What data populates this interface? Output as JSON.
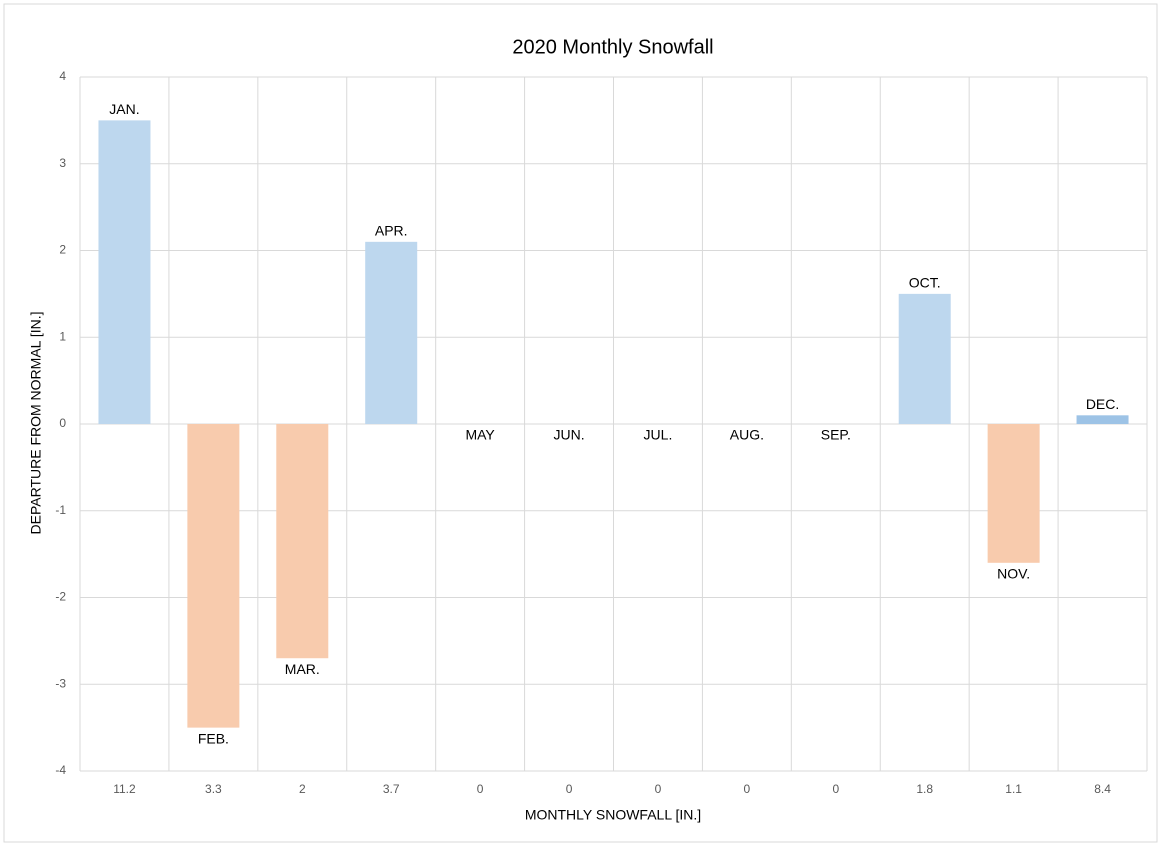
{
  "chart_data": {
    "type": "bar",
    "title": "2020 Monthly  Snowfall",
    "x_label": "MONTHLY SNOWFALL [IN.]",
    "y_label": "DEPARTURE FROM NORMAL [IN.]",
    "categories": [
      "11.2",
      "3.3",
      "2",
      "3.7",
      "0",
      "0",
      "0",
      "0",
      "0",
      "1.8",
      "1.1",
      "8.4"
    ],
    "labels": [
      "JAN.",
      "FEB.",
      "MAR.",
      "APR.",
      "MAY",
      "JUN.",
      "JUL.",
      "AUG.",
      "SEP.",
      "OCT.",
      "NOV.",
      "DEC."
    ],
    "values": [
      3.5,
      -3.5,
      -2.7,
      2.1,
      0,
      0,
      0,
      0,
      0,
      1.5,
      -1.6,
      0.1
    ],
    "colors": [
      "#bdd7ee",
      "#f8cbad",
      "#f8cbad",
      "#bdd7ee",
      "#bdd7ee",
      "#bdd7ee",
      "#bdd7ee",
      "#bdd7ee",
      "#bdd7ee",
      "#bdd7ee",
      "#f8cbad",
      "#9dc3e6"
    ],
    "ylim": [
      -4,
      4
    ],
    "yticks": [
      -4,
      -3,
      -2,
      -1,
      0,
      1,
      2,
      3,
      4
    ],
    "grid": true
  }
}
